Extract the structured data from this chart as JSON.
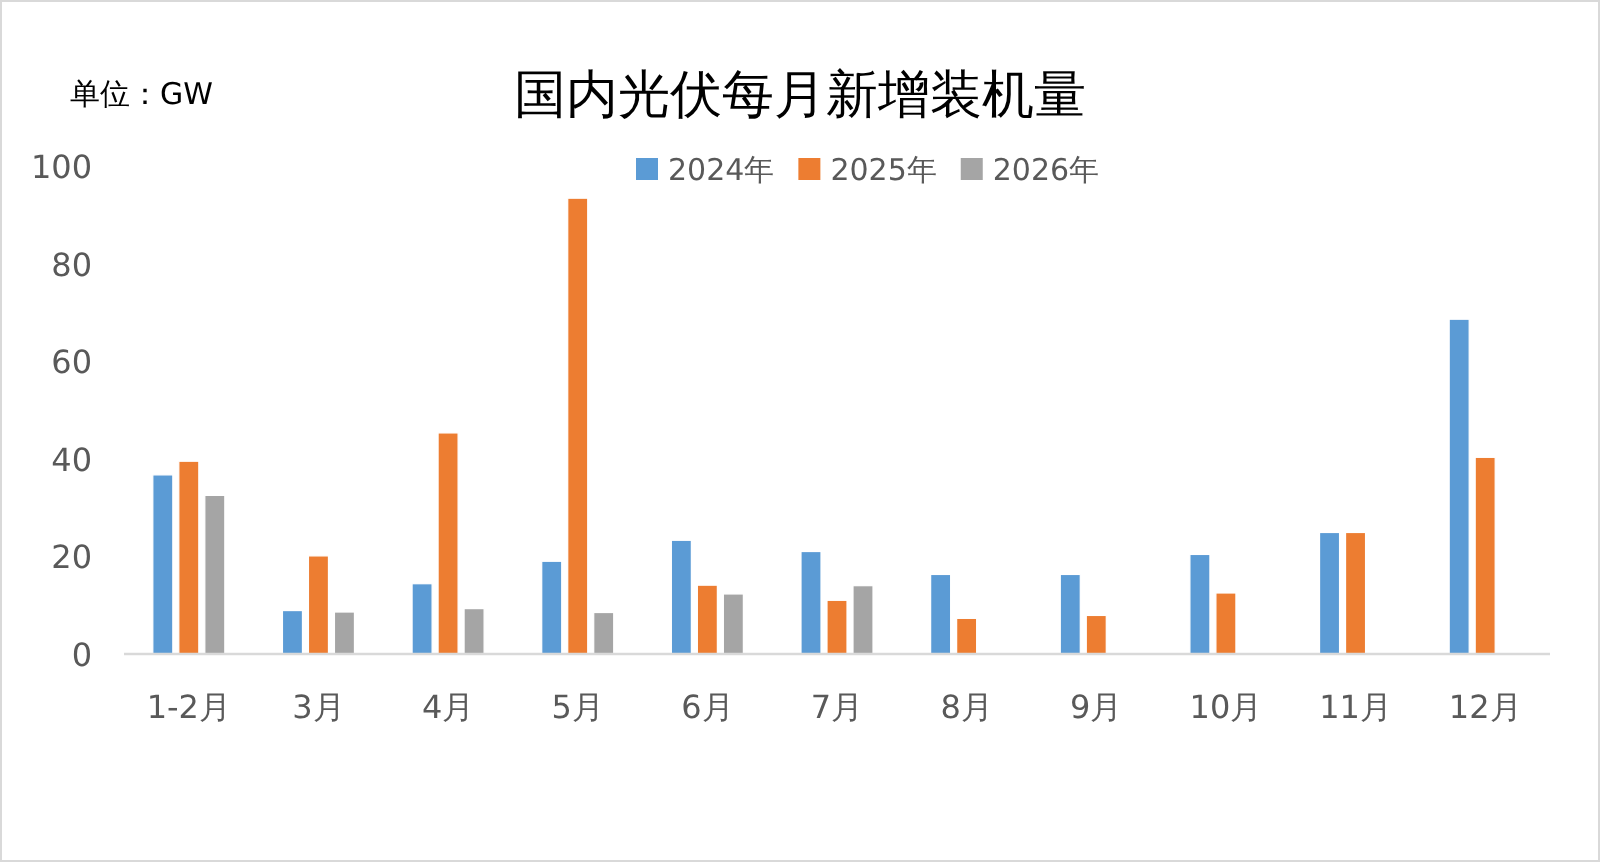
{
  "chart_data": {
    "type": "bar",
    "title": "国内光伏每月新增装机量",
    "ylabel": "单位：GW",
    "categories": [
      "1-2月",
      "3月",
      "4月",
      "5月",
      "6月",
      "7月",
      "8月",
      "9月",
      "10月",
      "11月",
      "12月"
    ],
    "series": [
      {
        "name": "2024年",
        "color": "#5b9bd5",
        "values": [
          36.7,
          8.9,
          14.4,
          19.0,
          23.3,
          21.0,
          16.3,
          16.3,
          20.4,
          24.9,
          68.6
        ]
      },
      {
        "name": "2025年",
        "color": "#ed7d31",
        "values": [
          39.5,
          20.1,
          45.3,
          93.4,
          14.1,
          11.0,
          7.3,
          7.9,
          12.5,
          24.9,
          40.3
        ]
      },
      {
        "name": "2026年",
        "color": "#a5a5a5",
        "values": [
          32.5,
          8.6,
          9.3,
          8.5,
          12.3,
          14.0,
          null,
          null,
          null,
          null,
          null
        ]
      }
    ],
    "ylim": [
      0,
      100
    ],
    "yticks": [
      0,
      20,
      40,
      60,
      80,
      100
    ],
    "grid": false,
    "legend": "top right"
  }
}
